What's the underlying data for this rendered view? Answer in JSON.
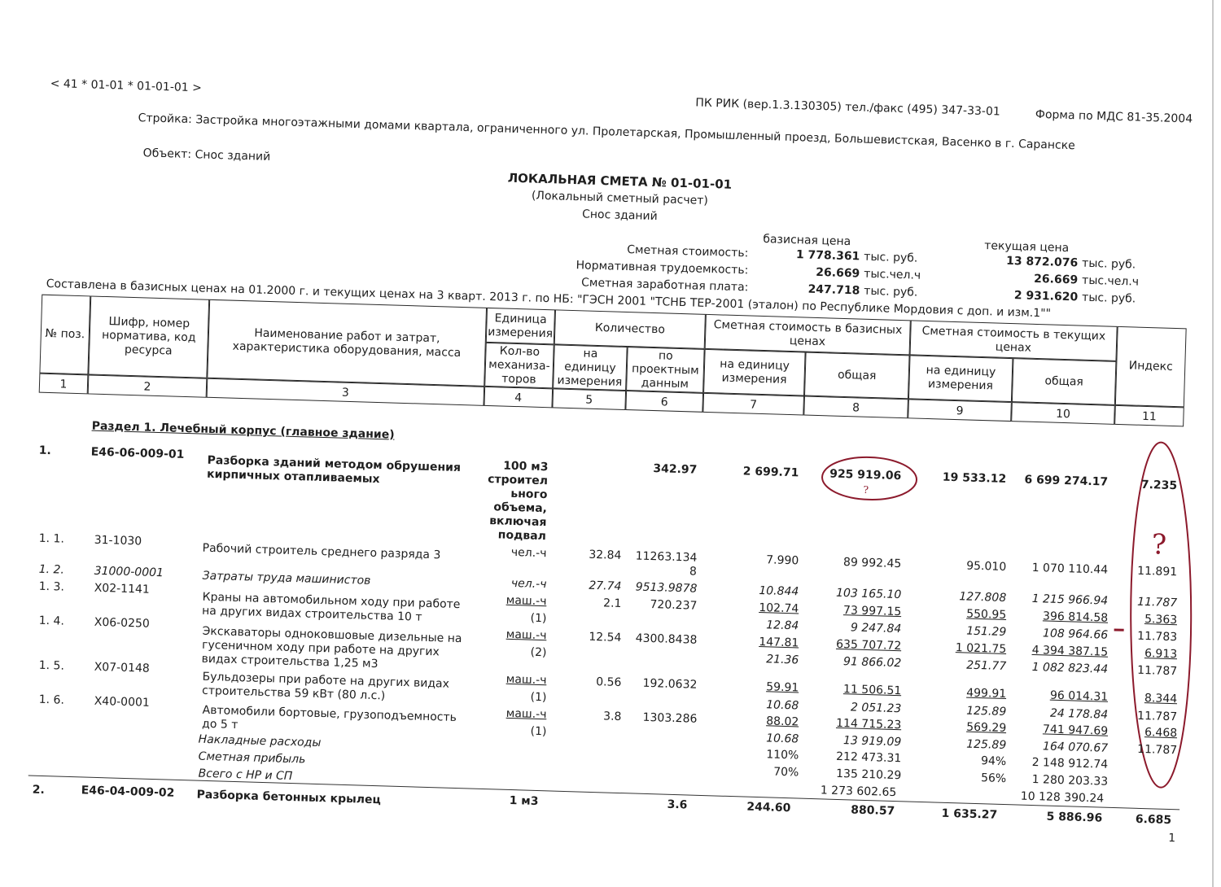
{
  "header": {
    "doc_code": "< 41 * 01-01 * 01-01-01 >",
    "software": "ПК РИК (вер.1.3.130305) тел./факс (495) 347-33-01",
    "form": "Форма по МДС 81-35.2004",
    "construction": "Стройка: Застройка многоэтажными домами квартала, ограниченного ул. Пролетарская, Промышленный проезд, Большевистская, Васенко в г. Саранске",
    "object": "Объект: Снос зданий",
    "title": "ЛОКАЛЬНАЯ СМЕТА № 01-01-01",
    "subtitle": "(Локальный сметный расчет)",
    "name": "Снос зданий"
  },
  "summary": {
    "base_header": "базисная цена",
    "current_header": "текущая цена",
    "rows": [
      {
        "label": "Сметная стоимость:",
        "base": "1 778.361",
        "base_unit": "тыс. руб.",
        "current": "13 872.076",
        "current_unit": "тыс. руб."
      },
      {
        "label": "Нормативная трудоемкость:",
        "base": "26.669",
        "base_unit": "тыс.чел.ч",
        "current": "26.669",
        "current_unit": "тыс.чел.ч"
      },
      {
        "label": "Сметная заработная плата:",
        "base": "247.718",
        "base_unit": "тыс. руб.",
        "current": "2 931.620",
        "current_unit": "тыс. руб."
      }
    ]
  },
  "basis_note": "Составлена в базисных ценах на 01.2000 г. и текущих ценах на 3 кварт. 2013 г. по НБ: \"ГЭСН 2001 \"ТСНБ ТЕР-2001 (эталон) по Республике Мордовия с доп. и изм.1\"\"",
  "table": {
    "headers": {
      "pos": "№ поз.",
      "code": "Шифр, номер норматива, код ресурса",
      "name": "Наименование работ и затрат, характеристика оборудования, масса",
      "unit": "Единица измерения",
      "machines": "Кол-во механиза-торов",
      "quantity": "Количество",
      "qty_per_unit": "на единицу измерения",
      "qty_total": "по проектным данным",
      "base_cost": "Сметная стоимость в базисных ценах",
      "base_per_unit": "на единицу измерения",
      "base_total": "общая",
      "current_cost": "Сметная стоимость в текущих ценах",
      "cur_per_unit": "на единицу измерения",
      "cur_total": "общая",
      "index": "Индекс"
    },
    "column_numbers": [
      "1",
      "2",
      "3",
      "4",
      "5",
      "6",
      "7",
      "8",
      "9",
      "10",
      "11"
    ]
  },
  "section_title": "Раздел 1.  Лечебный корпус (главное здание)",
  "items": [
    {
      "pos": "1.",
      "code": "Е46-06-009-01",
      "name": "Разборка зданий методом обрушения кирпичных отапливаемых",
      "unit": "100 м3 строительного объема, включая подвал",
      "qty_total": "342.97",
      "base_per_unit": "2 699.71",
      "base_total": "925 919.06",
      "cur_per_unit": "19 533.12",
      "cur_total": "6 699 274.17",
      "index": "7.235",
      "resources": [
        {
          "pos": "1. 1.",
          "code": "31-1030",
          "name": "Рабочий строитель среднего разряда 3",
          "unit": "чел.-ч",
          "qty_per_unit": "32.84",
          "qty_total": "11263.1348",
          "base_per_unit": "7.990",
          "base_total": "89 992.45",
          "cur_per_unit": "95.010",
          "cur_total": "1 070 110.44",
          "index": "11.891"
        },
        {
          "pos": "1. 2.",
          "code": "31000-0001",
          "name": "Затраты труда машинистов",
          "unit": "чел.-ч",
          "qty_per_unit": "27.74",
          "qty_total": "9513.9878",
          "base_per_unit": "10.844",
          "base_total": "103 165.10",
          "cur_per_unit": "127.808",
          "cur_total": "1 215 966.94",
          "index": "11.787"
        },
        {
          "pos": "1. 3.",
          "code": "Х02-1141",
          "name": "Краны на автомобильном ходу при работе на других видах строительства 10 т",
          "unit": "маш.-ч",
          "machines": "(1)",
          "qty_per_unit": "2.1",
          "qty_total": "720.237",
          "base_per_unit": "102.74",
          "base_total": "73 997.15",
          "cur_per_unit": "550.95",
          "cur_total": "396 814.58",
          "index": "5.363",
          "labor": {
            "base_per_unit": "12.84",
            "base_total": "9 247.84",
            "cur_per_unit": "151.29",
            "cur_total": "108 964.66",
            "index": "11.783"
          }
        },
        {
          "pos": "1. 4.",
          "code": "Х06-0250",
          "name": "Экскаваторы одноковшовые дизельные на гусеничном ходу при работе на других видах строительства 1,25 м3",
          "unit": "маш.-ч",
          "machines": "(2)",
          "qty_per_unit": "12.54",
          "qty_total": "4300.8438",
          "base_per_unit": "147.81",
          "base_total": "635 707.72",
          "cur_per_unit": "1 021.75",
          "cur_total": "4 394 387.15",
          "index": "6.913",
          "labor": {
            "base_per_unit": "21.36",
            "base_total": "91 866.02",
            "cur_per_unit": "251.77",
            "cur_total": "1 082 823.44",
            "index": "11.787"
          }
        },
        {
          "pos": "1. 5.",
          "code": "Х07-0148",
          "name": "Бульдозеры при работе на других видах строительства 59 кВт (80 л.с.)",
          "unit": "маш.-ч",
          "machines": "(1)",
          "qty_per_unit": "0.56",
          "qty_total": "192.0632",
          "base_per_unit": "59.91",
          "base_total": "11 506.51",
          "cur_per_unit": "499.91",
          "cur_total": "96 014.31",
          "index": "8.344",
          "labor": {
            "base_per_unit": "10.68",
            "base_total": "2 051.23",
            "cur_per_unit": "125.89",
            "cur_total": "24 178.84",
            "index": "11.787"
          }
        },
        {
          "pos": "1. 6.",
          "code": "Х40-0001",
          "name": "Автомобили бортовые, грузоподъемность до 5 т",
          "unit": "маш.-ч",
          "machines": "(1)",
          "qty_per_unit": "3.8",
          "qty_total": "1303.286",
          "base_per_unit": "88.02",
          "base_total": "114 715.23",
          "cur_per_unit": "569.29",
          "cur_total": "741 947.69",
          "index": "6.468",
          "labor": {
            "base_per_unit": "10.68",
            "base_total": "13 919.09",
            "cur_per_unit": "125.89",
            "cur_total": "164 070.67",
            "index": "11.787"
          }
        }
      ],
      "overhead": {
        "label": "Накладные расходы",
        "base_rate": "110%",
        "base_total": "212 473.31",
        "cur_rate": "94%",
        "cur_total": "2 148 912.74"
      },
      "profit": {
        "label": "Сметная прибыль",
        "base_rate": "70%",
        "base_total": "135 210.29",
        "cur_rate": "56%",
        "cur_total": "1 280 203.33"
      },
      "total": {
        "label": "Всего с НР и СП",
        "base_total": "1 273 602.65",
        "cur_total": "10 128 390.24"
      }
    },
    {
      "pos": "2.",
      "code": "Е46-04-009-02",
      "name": "Разборка бетонных крылец",
      "unit": "1 м3",
      "qty_total": "3.6",
      "base_per_unit": "244.60",
      "base_total": "880.57",
      "cur_per_unit": "1 635.27",
      "cur_total": "5 886.96",
      "index": "6.685"
    }
  ],
  "page_number": "1",
  "annotations": {
    "color": "#8c1a2c",
    "mark": "?"
  }
}
